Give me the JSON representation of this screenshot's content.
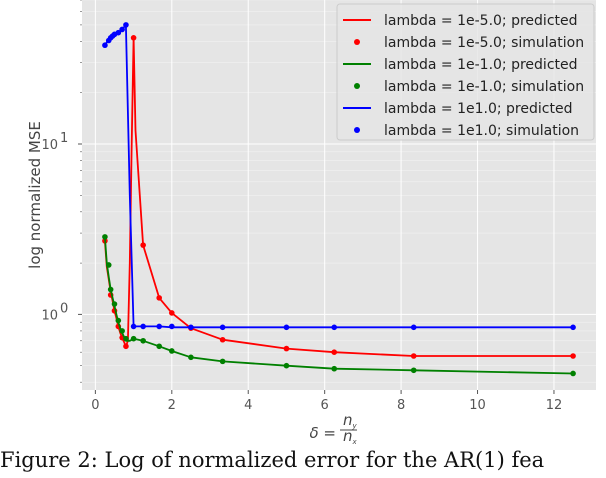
{
  "chart_data": {
    "type": "line",
    "xlabel_main": "δ =",
    "xlabel_num": "n",
    "xlabel_num_sub": "y",
    "xlabel_den": "n",
    "xlabel_den_sub": "x",
    "ylabel": "log normalized MSE",
    "yscale": "log",
    "xlim": [
      -0.35,
      13.1
    ],
    "ylim": [
      0.36,
      70
    ],
    "grid": true,
    "legend_position": "top-right",
    "xticks": [
      0,
      2,
      4,
      6,
      8,
      10,
      12
    ],
    "xtick_labels": [
      "0",
      "2",
      "4",
      "6",
      "8",
      "10",
      "12"
    ],
    "yticks": [
      1,
      10
    ],
    "ytick_base": "10",
    "ytick_exps": [
      "0",
      "1"
    ],
    "series": [
      {
        "name": "lambda = 1e-5.0; predicted",
        "color": "#ff0000",
        "style": "line",
        "x": [
          0.25,
          0.3,
          0.35,
          0.4,
          0.45,
          0.5,
          0.55,
          0.6,
          0.65,
          0.7,
          0.75,
          0.8,
          0.85,
          0.9,
          0.95,
          1.0,
          1.05,
          1.25,
          1.67,
          2.0,
          2.5,
          3.33,
          5.0,
          6.25,
          8.33,
          12.5
        ],
        "y": [
          2.7,
          1.9,
          1.6,
          1.35,
          1.2,
          1.05,
          0.95,
          0.85,
          0.78,
          0.73,
          0.69,
          0.65,
          0.7,
          2.0,
          10.0,
          42.0,
          12.0,
          2.55,
          1.25,
          1.02,
          0.83,
          0.71,
          0.63,
          0.6,
          0.57,
          0.57
        ]
      },
      {
        "name": "lambda = 1e-5.0; simulation",
        "color": "#ff0000",
        "style": "markers",
        "x": [
          0.25,
          0.4,
          0.5,
          0.6,
          0.7,
          0.8,
          1.0,
          1.25,
          1.67,
          2.0,
          2.5,
          3.33,
          5.0,
          6.25,
          8.33,
          12.5
        ],
        "y": [
          2.7,
          1.3,
          1.05,
          0.85,
          0.73,
          0.65,
          42.0,
          2.55,
          1.25,
          1.02,
          0.83,
          0.71,
          0.63,
          0.6,
          0.57,
          0.57
        ]
      },
      {
        "name": "lambda = 1e-1.0; predicted",
        "color": "#008000",
        "style": "line",
        "x": [
          0.25,
          0.3,
          0.35,
          0.4,
          0.45,
          0.5,
          0.55,
          0.6,
          0.65,
          0.7,
          0.75,
          0.8,
          0.9,
          1.0,
          1.25,
          1.67,
          2.0,
          2.5,
          3.33,
          5.0,
          6.25,
          8.33,
          12.5
        ],
        "y": [
          2.85,
          2.0,
          1.65,
          1.4,
          1.25,
          1.12,
          1.0,
          0.9,
          0.83,
          0.78,
          0.74,
          0.7,
          0.7,
          0.72,
          0.7,
          0.65,
          0.61,
          0.56,
          0.53,
          0.5,
          0.48,
          0.47,
          0.45
        ]
      },
      {
        "name": "lambda = 1e-1.0; simulation",
        "color": "#008000",
        "style": "markers",
        "x": [
          0.25,
          0.35,
          0.4,
          0.5,
          0.6,
          0.7,
          0.8,
          1.0,
          1.25,
          1.67,
          2.0,
          2.5,
          3.33,
          5.0,
          6.25,
          8.33,
          12.5
        ],
        "y": [
          2.85,
          1.95,
          1.4,
          1.15,
          0.92,
          0.8,
          0.72,
          0.72,
          0.7,
          0.65,
          0.61,
          0.56,
          0.53,
          0.5,
          0.48,
          0.47,
          0.45
        ]
      },
      {
        "name": "lambda = 1e1.0; predicted",
        "color": "#0000ff",
        "style": "line",
        "x": [
          0.25,
          0.3,
          0.35,
          0.4,
          0.45,
          0.5,
          0.6,
          0.7,
          0.8,
          0.9,
          1.0,
          1.05,
          1.25,
          1.67,
          2.0,
          2.5,
          3.33,
          5.0,
          6.25,
          8.33,
          12.5
        ],
        "y": [
          38.0,
          39.5,
          41.0,
          42.0,
          43.0,
          44.0,
          45.0,
          47.0,
          50.0,
          5.0,
          0.85,
          0.85,
          0.85,
          0.85,
          0.84,
          0.84,
          0.84,
          0.84,
          0.84,
          0.84,
          0.84
        ]
      },
      {
        "name": "lambda = 1e1.0; simulation",
        "color": "#0000ff",
        "style": "markers",
        "x": [
          0.25,
          0.35,
          0.4,
          0.45,
          0.5,
          0.6,
          0.7,
          0.8,
          1.0,
          1.25,
          1.67,
          2.0,
          2.5,
          3.33,
          5.0,
          6.25,
          8.33,
          12.5
        ],
        "y": [
          38.0,
          40.5,
          42.0,
          43.0,
          44.0,
          45.0,
          47.0,
          50.0,
          0.85,
          0.85,
          0.85,
          0.85,
          0.84,
          0.84,
          0.84,
          0.84,
          0.84,
          0.84
        ]
      }
    ]
  },
  "caption": "Figure 2:  Log of normalized error for the AR(1) fea"
}
